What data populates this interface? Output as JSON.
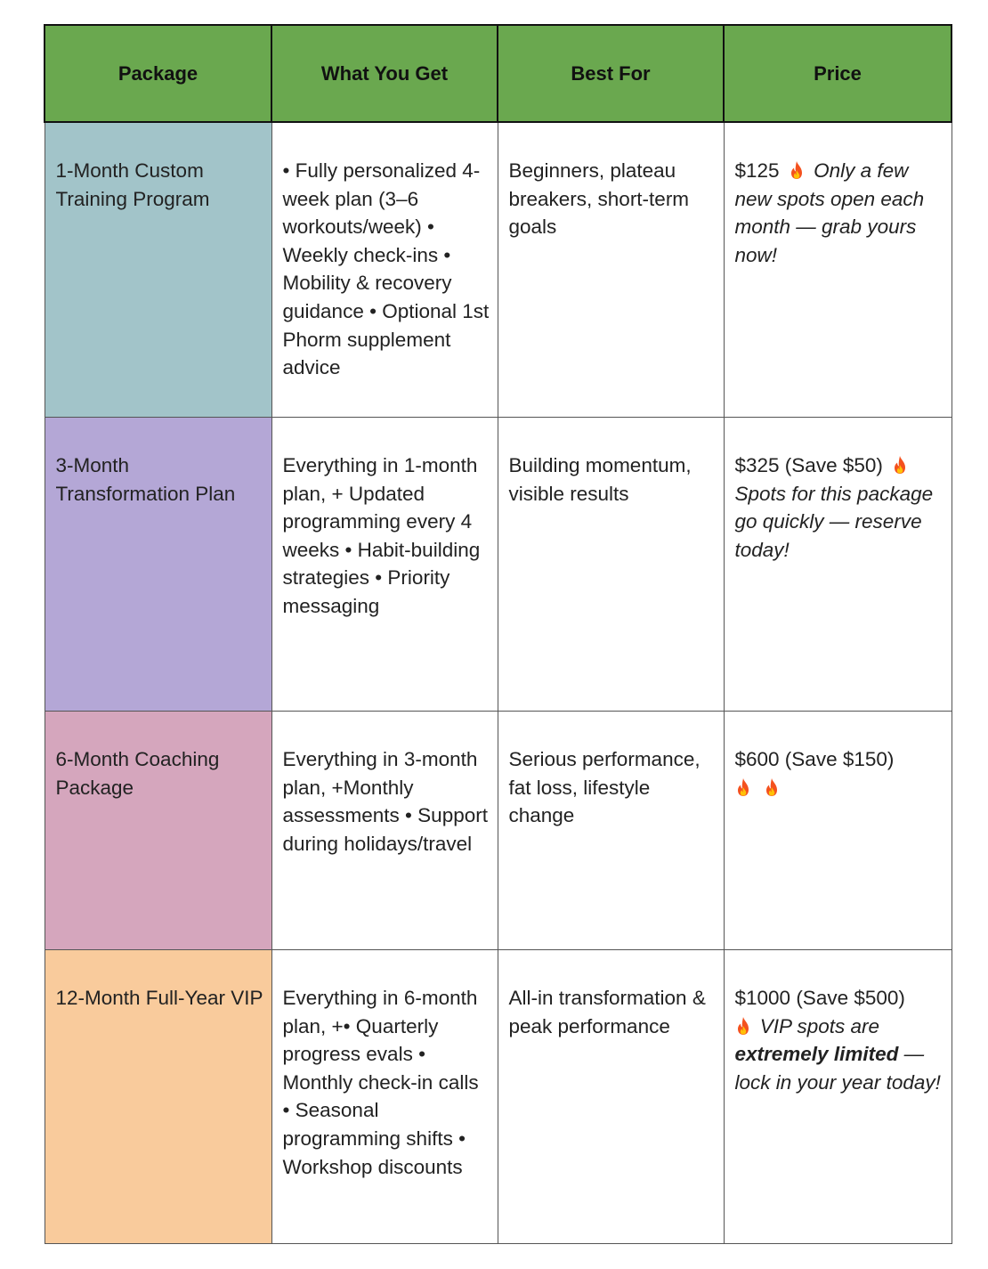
{
  "headers": {
    "package": "Package",
    "what_you_get": "What You Get",
    "best_for": "Best For",
    "price": "Price"
  },
  "rows": [
    {
      "package": "1-Month Custom Training Program",
      "package_color": "#a2c4c9",
      "what_you_get": "• Fully personalized 4-week plan (3–6 workouts/week) • Weekly check-ins • Mobility & recovery guidance • Optional 1st Phorm supplement advice",
      "best_for": "Beginners, plateau breakers, short-term goals",
      "price": "$125",
      "price_note": "Only a few new spots open each month — grab yours now!"
    },
    {
      "package": "3-Month Transformation Plan",
      "package_color": "#b4a7d6",
      "what_you_get": "Everything in 1-month plan, + Updated programming every 4 weeks • Habit-building strategies • Priority messaging",
      "best_for": "Building momentum, visible results",
      "price": "$325 (Save $50)",
      "price_note": "Spots for this package go quickly — reserve today!"
    },
    {
      "package": "6-Month Coaching Package",
      "package_color": "#d5a6bd",
      "what_you_get": "Everything in 3-month plan, +Monthly assessments • Support during holidays/travel",
      "best_for": "Serious performance, fat loss, lifestyle change",
      "price": "$600 (Save $150)",
      "price_note": ""
    },
    {
      "package": "12-Month Full-Year VIP",
      "package_color": "#f9cb9c",
      "what_you_get": "Everything in 6-month plan, +• Quarterly progress evals • Monthly check-in calls • Seasonal programming shifts • Workshop discounts",
      "best_for": "All-in transformation & peak performance",
      "price": "$1000 (Save $500)",
      "price_note_start": "VIP spots are",
      "price_note_bold": "extremely limited",
      "price_note_end": "— lock in your year today!"
    }
  ],
  "colors": {
    "header_bg": "#6aa84f",
    "flame": "#f4511e"
  },
  "icons": [
    "flame-icon"
  ]
}
